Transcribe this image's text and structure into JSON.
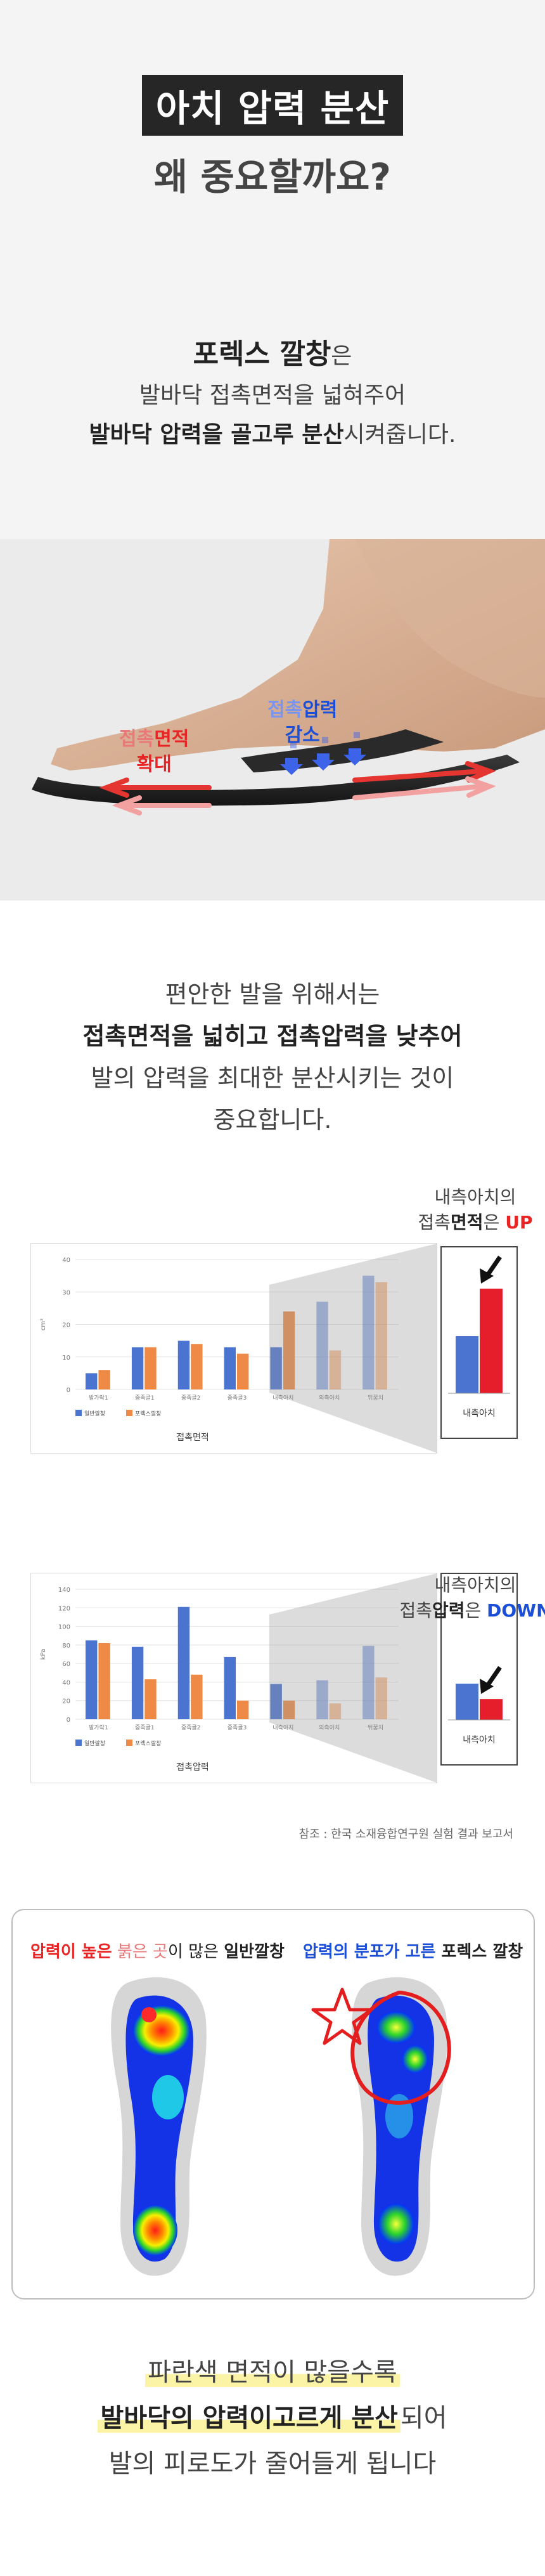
{
  "header": {
    "title_line1": "아치 압력 분산",
    "title_line2": "왜 중요할까요?"
  },
  "intro": {
    "brand": "포렉스 깔창",
    "brand_suffix": "은",
    "line2": "발바닥 접촉면적을 넓혀주어",
    "line3_bold": "발바닥 압력을 골고루 분산",
    "line3_rest": "시켜줍니다."
  },
  "photo": {
    "label_area_a": "접촉",
    "label_area_b": "면적",
    "label_area_c": "확대",
    "label_press_a": "접촉",
    "label_press_b": "압력",
    "label_press_c": "감소"
  },
  "text2": {
    "line1": "편안한 발을 위해서는",
    "line2": "접촉면적을 넓히고 접촉압력을 낮추어",
    "line3": "발의 압력을 최대한 분산시키는 것이",
    "line4": "중요합니다."
  },
  "chart_data": [
    {
      "type": "bar",
      "title": "",
      "xlabel": "접촉면적",
      "ylabel": "cm²",
      "ylim": [
        0,
        40
      ],
      "yticks": [
        "0",
        "10",
        "20",
        "30",
        "40"
      ],
      "categories": [
        "발가락1",
        "중족골1",
        "중족골2",
        "중족골3",
        "내측아치",
        "외측아치",
        "뒤꿈치"
      ],
      "series": [
        {
          "name": "일반깔창",
          "color": "#4a74d0",
          "values": [
            5,
            13,
            15,
            13,
            13,
            27,
            35
          ]
        },
        {
          "name": "포렉스깔창",
          "color": "#ee8a45",
          "values": [
            6,
            13,
            14,
            11,
            24,
            12,
            33
          ]
        }
      ],
      "grid": true,
      "legend": "bottom-left",
      "zoom": {
        "label": "내측아치",
        "values": [
          18,
          33
        ],
        "colors": [
          "#4a74d0",
          "#e61e2b"
        ]
      },
      "callout_line1": "내측아치의",
      "callout_line2a": "접촉",
      "callout_line2b": "면적",
      "callout_line2c": "은 ",
      "callout_line2d": "UP"
    },
    {
      "type": "bar",
      "title": "",
      "xlabel": "접촉압력",
      "ylabel": "kPa",
      "ylim": [
        0,
        140
      ],
      "yticks": [
        "0",
        "20",
        "40",
        "60",
        "80",
        "100",
        "120",
        "140"
      ],
      "categories": [
        "발가락1",
        "중족골1",
        "중족골2",
        "중족골3",
        "내측아치",
        "외측아치",
        "뒤꿈치"
      ],
      "series": [
        {
          "name": "일반깔창",
          "color": "#4a74d0",
          "values": [
            85,
            78,
            121,
            67,
            38,
            42,
            79
          ]
        },
        {
          "name": "포렉스깔창",
          "color": "#ee8a45",
          "values": [
            82,
            43,
            48,
            20,
            20,
            17,
            45
          ]
        }
      ],
      "grid": true,
      "legend": "bottom-left",
      "zoom": {
        "label": "내측아치",
        "values": [
          40,
          23
        ],
        "colors": [
          "#4a74d0",
          "#e61e2b"
        ]
      },
      "callout_line1": "내측아치의",
      "callout_line2a": "접촉",
      "callout_line2b": "압력",
      "callout_line2c": "은 ",
      "callout_line2d": "DOWN"
    }
  ],
  "source_note": "참조 : 한국 소재융합연구원 실험 결과 보고서",
  "heatmap": {
    "left_a": "압력이 높은",
    "left_b": " 붉은 곳",
    "left_c": "이 많은 ",
    "left_d": "일반깔창",
    "right_a": "압력의 분포가 고른",
    "right_b": " 포렉스 깔창"
  },
  "bottom": {
    "line1": "파란색 면적이 많을수록",
    "line2_bold": "발바닥의 압력이고르게 분산",
    "line2_rest": "되어",
    "line3": "발의 피로도가 줄어들게 됩니다"
  }
}
